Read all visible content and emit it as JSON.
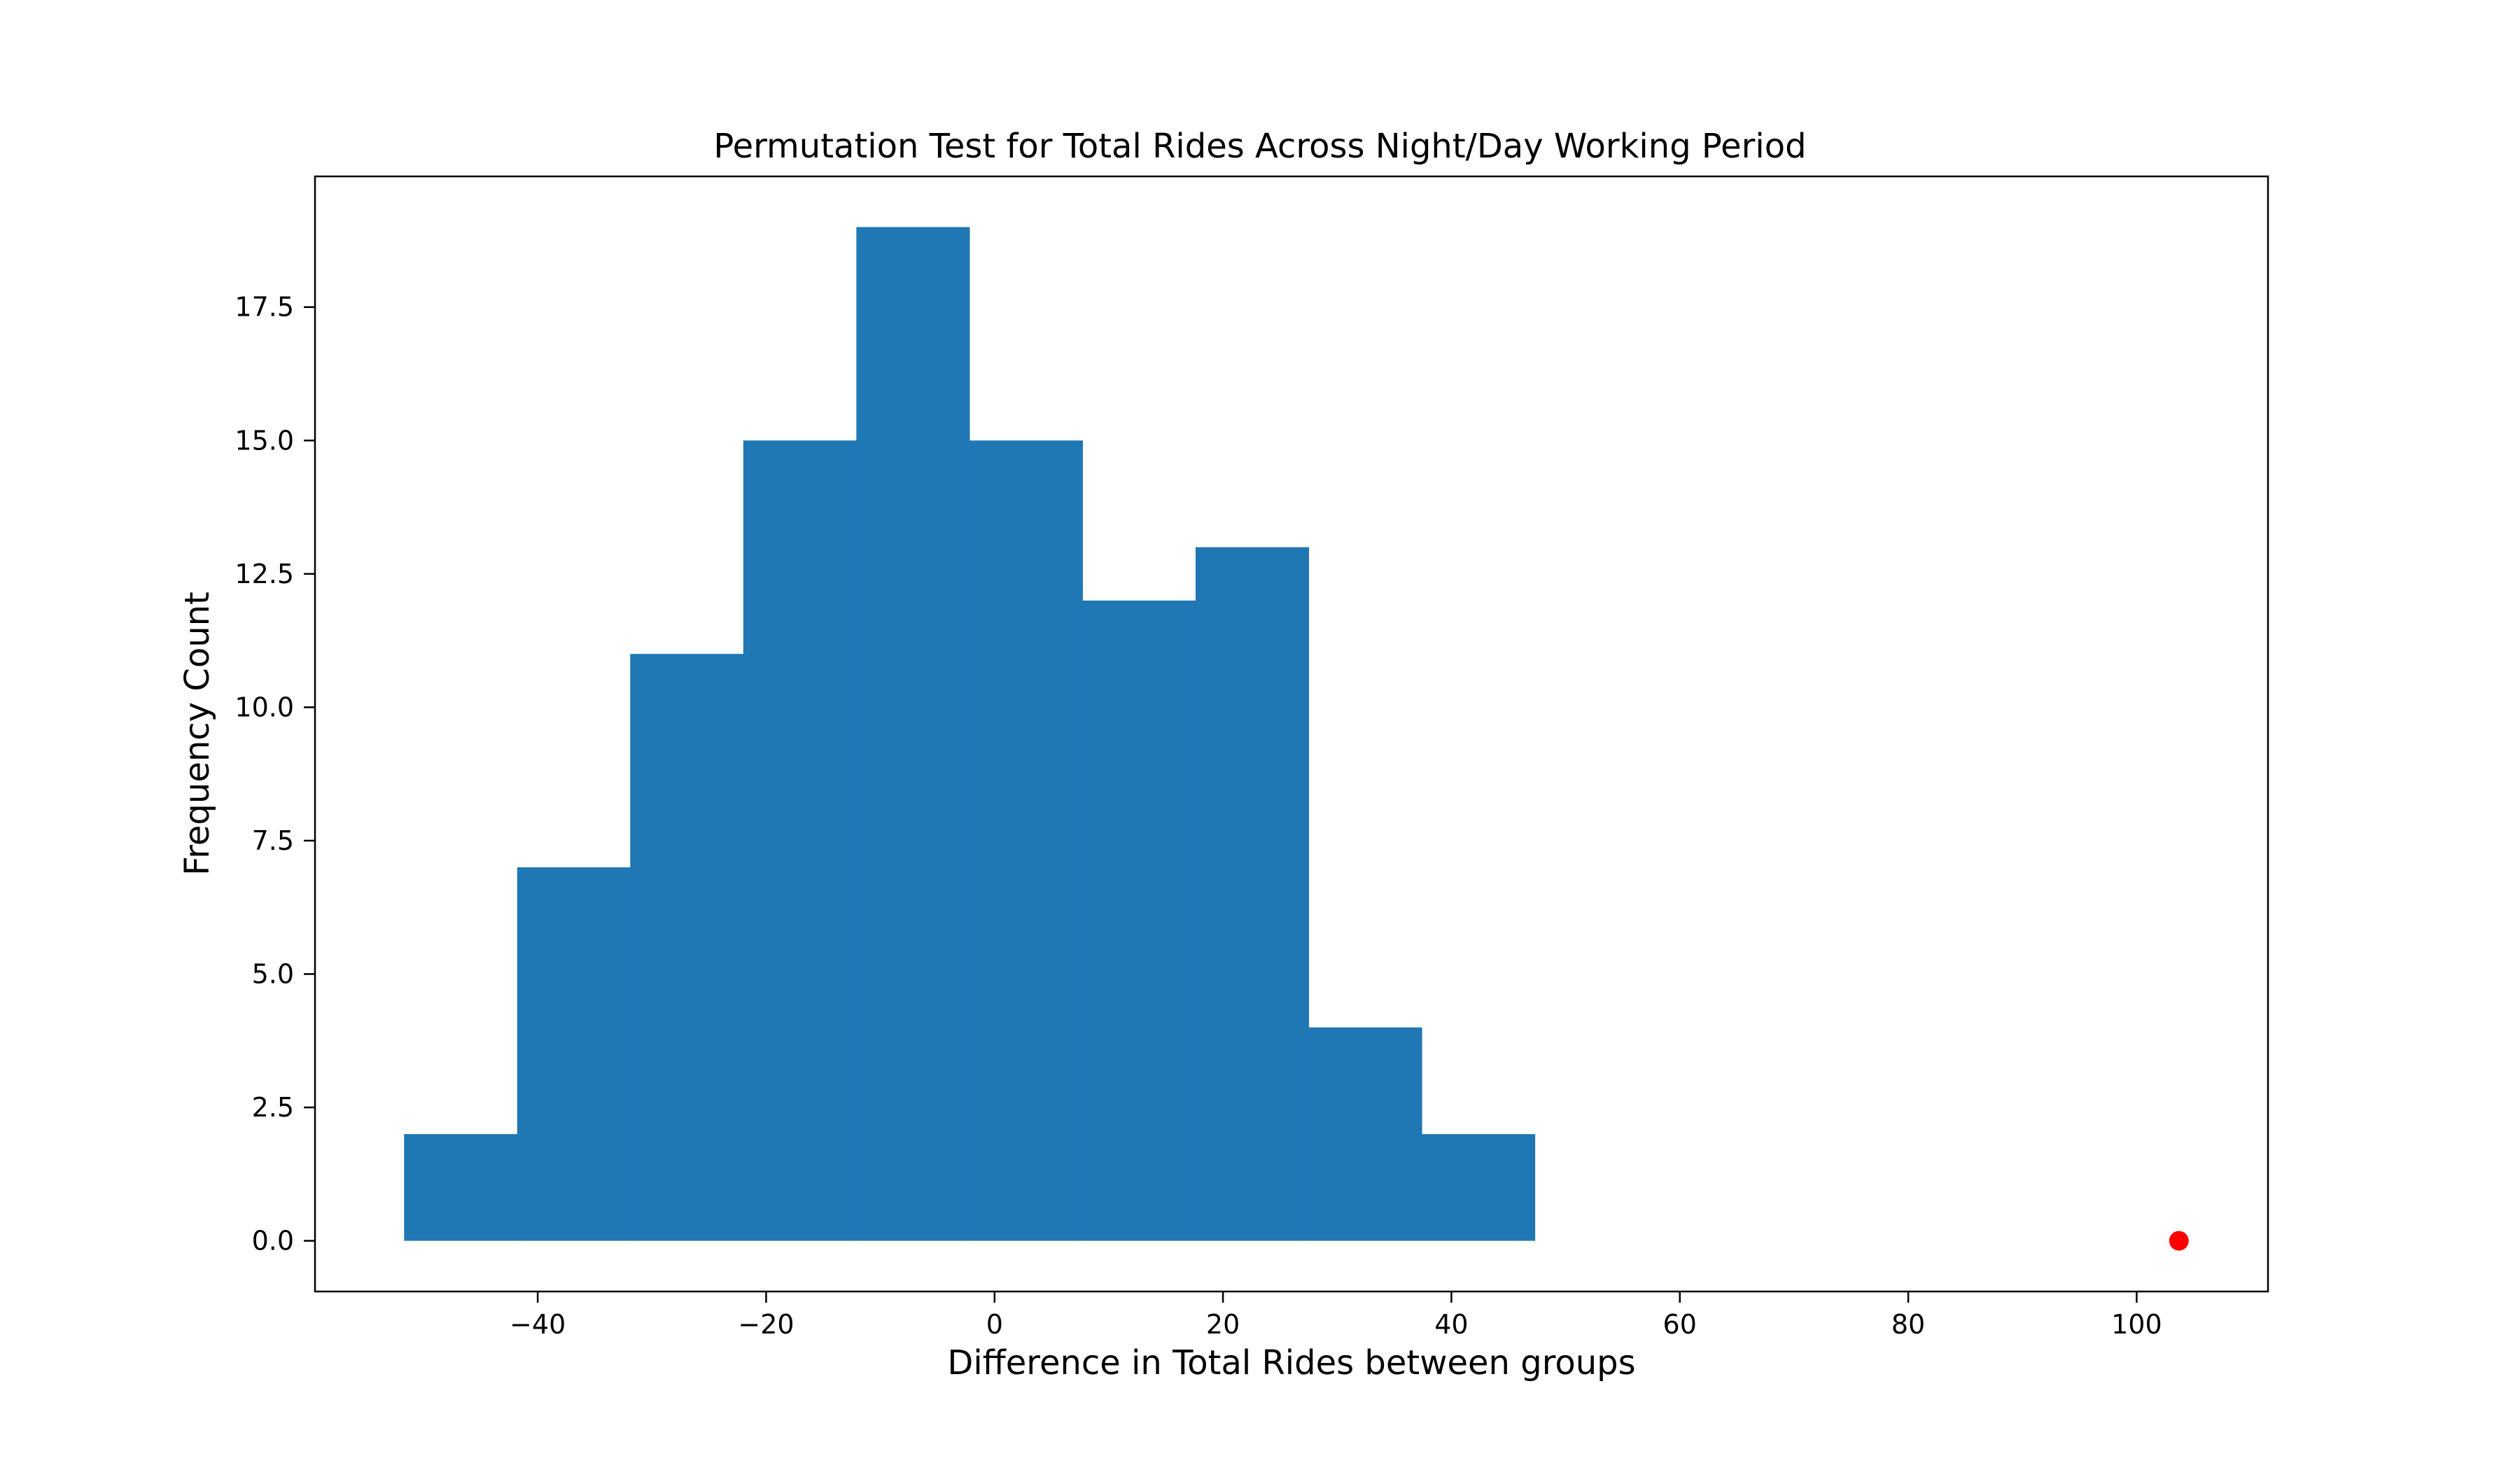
{
  "chart_data": {
    "type": "bar",
    "subtype": "histogram",
    "title": "Permutation Test for Total Rides Across Night/Day Working Period",
    "xlabel": "Difference in Total Rides between groups",
    "ylabel": "Frequency Count",
    "xlim": [
      -59.5,
      111.5
    ],
    "ylim": [
      -0.95,
      19.95
    ],
    "xticks": [
      -40,
      -20,
      0,
      20,
      40,
      60,
      80,
      100
    ],
    "xtick_labels": [
      "−40",
      "−20",
      "0",
      "20",
      "40",
      "60",
      "80",
      "100"
    ],
    "yticks": [
      0.0,
      2.5,
      5.0,
      7.5,
      10.0,
      12.5,
      15.0,
      17.5
    ],
    "ytick_labels": [
      "0.0",
      "2.5",
      "5.0",
      "7.5",
      "10.0",
      "12.5",
      "15.0",
      "17.5"
    ],
    "bins": [
      {
        "x0": -51.7,
        "x1": -41.8,
        "count": 2
      },
      {
        "x0": -41.8,
        "x1": -31.9,
        "count": 7
      },
      {
        "x0": -31.9,
        "x1": -22.0,
        "count": 11
      },
      {
        "x0": -22.0,
        "x1": -12.1,
        "count": 15
      },
      {
        "x0": -12.1,
        "x1": -2.2,
        "count": 19
      },
      {
        "x0": -2.2,
        "x1": 7.7,
        "count": 15
      },
      {
        "x0": 7.7,
        "x1": 17.6,
        "count": 12
      },
      {
        "x0": 17.6,
        "x1": 27.5,
        "count": 13
      },
      {
        "x0": 27.5,
        "x1": 37.4,
        "count": 4
      },
      {
        "x0": 37.4,
        "x1": 47.3,
        "count": 2
      }
    ],
    "observed_point": {
      "x": 103.7,
      "y": 0
    },
    "colors": {
      "bars": "#1f77b4",
      "observed_point": "#ff0000"
    },
    "grid": false,
    "legend": "none"
  }
}
